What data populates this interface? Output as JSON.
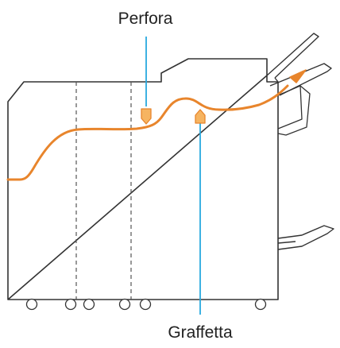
{
  "labels": {
    "punch": "Perfora",
    "staple": "Graffetta"
  },
  "colors": {
    "paper_path": "#E8852C",
    "marker_fill": "#F6B461",
    "marker_stroke": "#E8852C",
    "callout_line": "#29A9DF",
    "outline": "#333333",
    "divider": "#555555"
  }
}
